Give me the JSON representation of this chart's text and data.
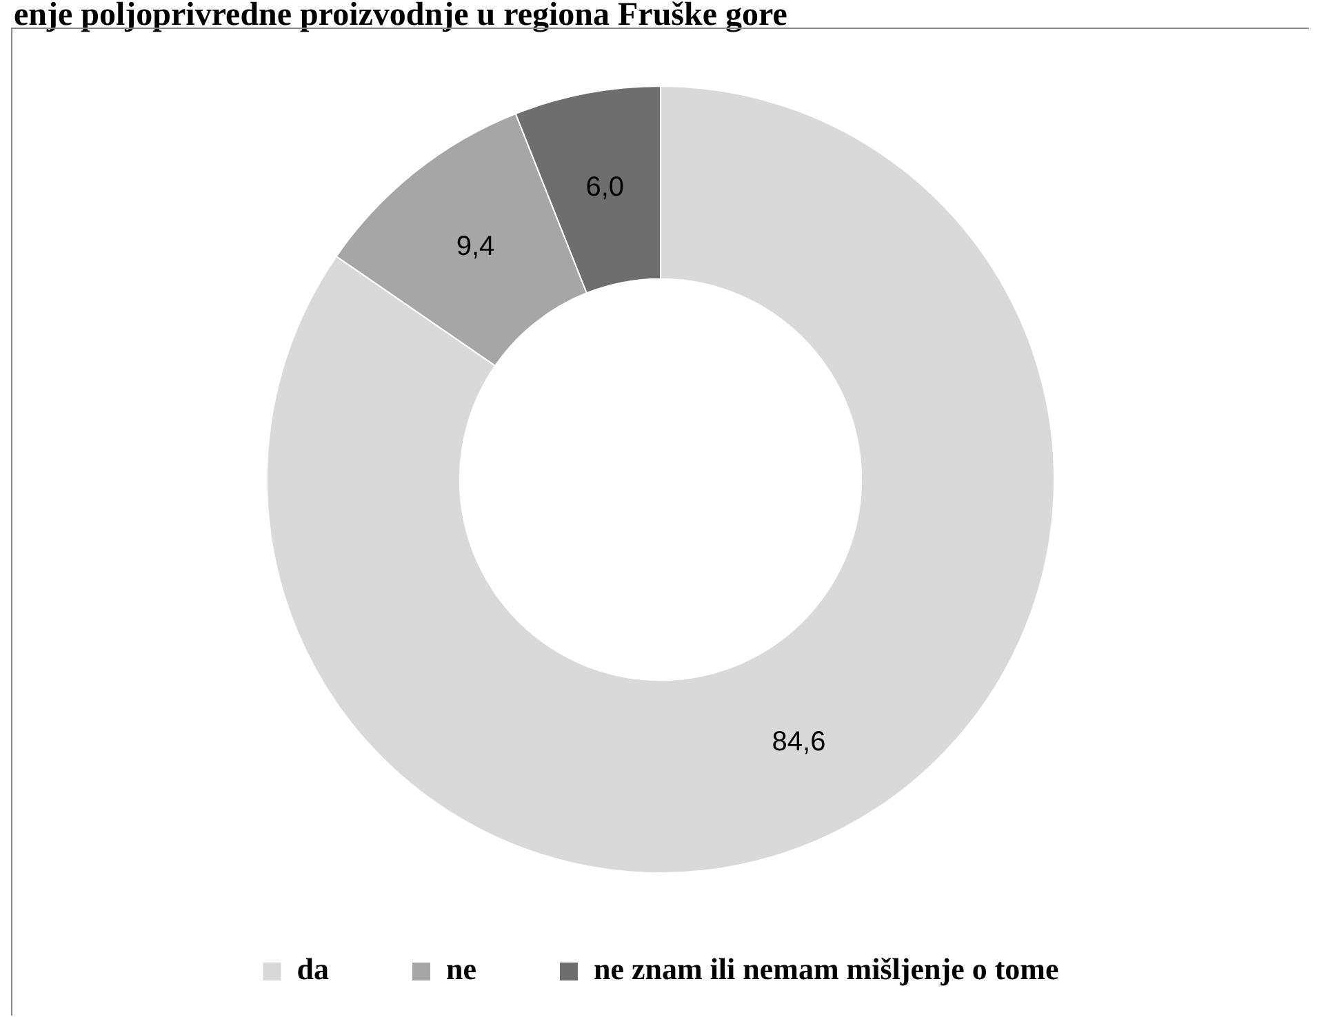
{
  "chart_data": {
    "type": "donut",
    "title": "enje poljoprivredne proizvodnje u regiona Fruške gore",
    "categories": [
      "da",
      "ne",
      "ne znam ili nemam mišljenje o tome"
    ],
    "values": [
      84.6,
      9.4,
      6.0
    ],
    "colors": [
      "#d9d9d9",
      "#a6a6a6",
      "#6e6e6e"
    ],
    "value_labels": [
      "84,6",
      "9,4",
      "6,0"
    ],
    "legend": "bottom"
  }
}
